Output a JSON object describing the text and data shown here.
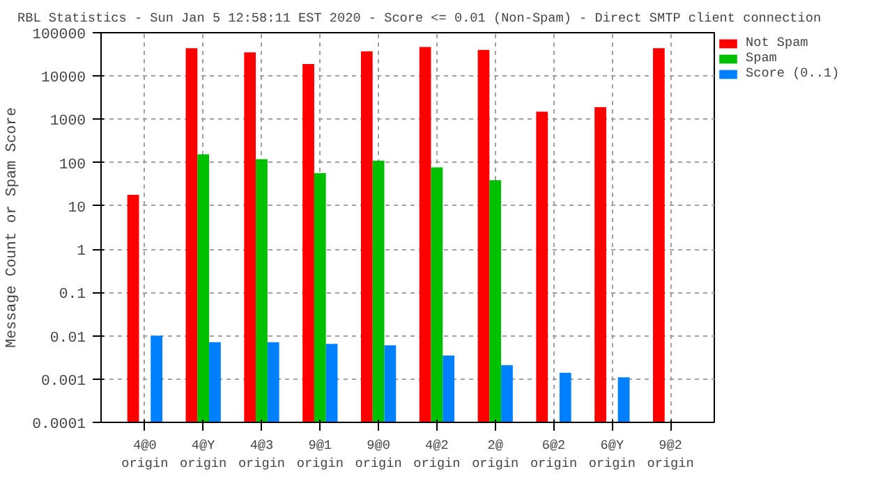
{
  "chart_data": {
    "type": "bar",
    "title": "RBL Statistics - Sun Jan  5 12:58:11 EST 2020 - Score <= 0.01 (Non-Spam) - Direct SMTP client connection",
    "ylabel": "Message Count or Spam Score",
    "categories": [
      "4@0 origin",
      "4@Y origin",
      "4@3 origin",
      "9@1 origin",
      "9@0 origin",
      "4@2 origin",
      "2@ origin",
      "6@2 origin",
      "6@Y origin",
      "9@2 origin"
    ],
    "series": [
      {
        "name": "Not Spam",
        "color": "#ff0000",
        "values": [
          18,
          44000,
          35000,
          19000,
          37000,
          47000,
          40000,
          1500,
          1900,
          44000
        ]
      },
      {
        "name": "Spam",
        "color": "#00c000",
        "values": [
          null,
          155,
          120,
          57,
          110,
          78,
          39,
          null,
          null,
          null
        ]
      },
      {
        "name": "Score (0..1)",
        "color": "#0080ff",
        "values": [
          0.01,
          0.0071,
          0.0071,
          0.0065,
          0.006,
          0.0035,
          0.0021,
          0.0014,
          0.0011,
          null
        ]
      }
    ],
    "log": true,
    "ylim": [
      0.0001,
      100000
    ],
    "yticks": [
      {
        "value": 0.0001,
        "label": "0.0001"
      },
      {
        "value": 0.001,
        "label": "0.001"
      },
      {
        "value": 0.01,
        "label": "0.01"
      },
      {
        "value": 0.1,
        "label": "0.1"
      },
      1,
      10,
      100,
      1000,
      10000,
      100000
    ],
    "grid": true,
    "legend": "top right"
  }
}
